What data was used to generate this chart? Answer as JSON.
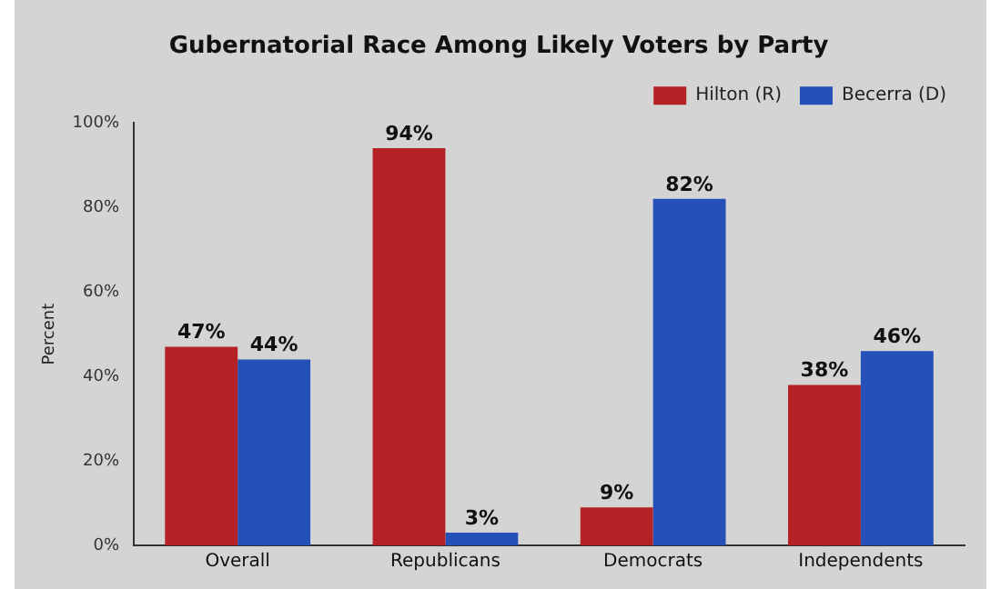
{
  "chart_data": {
    "type": "bar",
    "title": "Gubernatorial Race Among Likely Voters by Party",
    "ylabel": "Percent",
    "categories": [
      "Overall",
      "Republicans",
      "Democrats",
      "Independents"
    ],
    "series": [
      {
        "name": "Hilton (R)",
        "color": "#b52225",
        "values": [
          47,
          94,
          9,
          38
        ],
        "value_labels": [
          "47%",
          "94%",
          "9%",
          "38%"
        ]
      },
      {
        "name": "Becerra (D)",
        "color": "#2450b8",
        "values": [
          44,
          3,
          82,
          46
        ],
        "value_labels": [
          "44%",
          "3%",
          "82%",
          "46%"
        ]
      }
    ],
    "ylim": [
      0,
      100
    ],
    "yticks": [
      {
        "value": 0,
        "label": "0%"
      },
      {
        "value": 20,
        "label": "20%"
      },
      {
        "value": 40,
        "label": "40%"
      },
      {
        "value": 60,
        "label": "60%"
      },
      {
        "value": 80,
        "label": "80%"
      },
      {
        "value": 100,
        "label": "100%"
      }
    ],
    "grid": false,
    "legend": "top right"
  }
}
